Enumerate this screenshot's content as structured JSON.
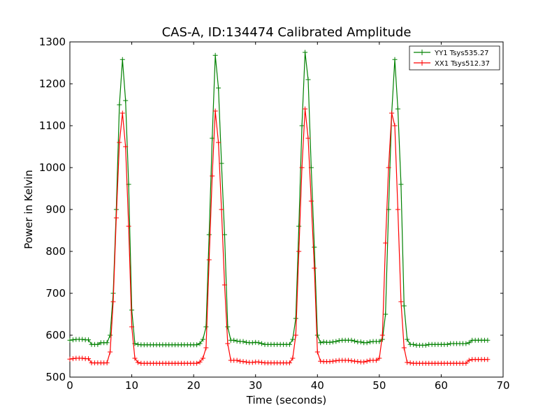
{
  "chart_data": {
    "type": "line",
    "title": "CAS-A, ID:134474 Calibrated Amplitude",
    "xlabel": "Time (seconds)",
    "ylabel": "Power in Kelvin",
    "xlim": [
      0,
      70
    ],
    "ylim": [
      500,
      1300
    ],
    "xticks": [
      0,
      10,
      20,
      30,
      40,
      50,
      60,
      70
    ],
    "yticks": [
      500,
      600,
      700,
      800,
      900,
      1000,
      1100,
      1200,
      1300
    ],
    "grid": false,
    "legend_position": "top-right",
    "marker": "plus",
    "series": [
      {
        "name": "YY1 Tsys535.27",
        "color": "#008000",
        "x": [
          0,
          0.5,
          1,
          1.5,
          2,
          2.5,
          3,
          3.5,
          4,
          4.5,
          5,
          5.5,
          6,
          6.5,
          7,
          7.5,
          8,
          8.5,
          9,
          9.5,
          10,
          10.5,
          11,
          11.5,
          12,
          12.5,
          13,
          13.5,
          14,
          14.5,
          15,
          15.5,
          16,
          16.5,
          17,
          17.5,
          18,
          18.5,
          19,
          19.5,
          20,
          20.5,
          21,
          21.5,
          22,
          22.5,
          23,
          23.5,
          24,
          24.5,
          25,
          25.5,
          26,
          26.5,
          27,
          27.5,
          28,
          28.5,
          29,
          29.5,
          30,
          30.5,
          31,
          31.5,
          32,
          32.5,
          33,
          33.5,
          34,
          34.5,
          35,
          35.5,
          36,
          36.5,
          37,
          37.5,
          38,
          38.5,
          39,
          39.5,
          40,
          40.5,
          41,
          41.5,
          42,
          42.5,
          43,
          43.5,
          44,
          44.5,
          45,
          45.5,
          46,
          46.5,
          47,
          47.5,
          48,
          48.5,
          49,
          49.5,
          50,
          50.5,
          51,
          51.5,
          52,
          52.5,
          53,
          53.5,
          54,
          54.5,
          55,
          55.5,
          56,
          56.5,
          57,
          57.5,
          58,
          58.5,
          59,
          59.5,
          60,
          60.5,
          61,
          61.5,
          62,
          62.5,
          63,
          63.5,
          64,
          64.5,
          65,
          65.5,
          66,
          66.5,
          67,
          67.5
        ],
        "y": [
          588,
          589,
          590,
          590,
          590,
          589,
          589,
          578,
          578,
          578,
          582,
          582,
          582,
          600,
          700,
          900,
          1150,
          1258,
          1160,
          960,
          660,
          580,
          578,
          577,
          577,
          577,
          577,
          577,
          577,
          577,
          577,
          577,
          577,
          577,
          577,
          577,
          577,
          577,
          577,
          577,
          577,
          577,
          580,
          590,
          620,
          840,
          1070,
          1268,
          1190,
          1010,
          840,
          620,
          588,
          588,
          586,
          585,
          585,
          583,
          582,
          582,
          583,
          582,
          580,
          578,
          578,
          578,
          578,
          578,
          578,
          578,
          578,
          578,
          590,
          640,
          860,
          1100,
          1275,
          1210,
          1000,
          810,
          600,
          582,
          584,
          583,
          583,
          584,
          585,
          587,
          588,
          588,
          588,
          588,
          586,
          584,
          584,
          582,
          582,
          584,
          585,
          585,
          585,
          590,
          650,
          900,
          1130,
          1258,
          1140,
          960,
          670,
          590,
          578,
          578,
          576,
          576,
          576,
          576,
          578,
          578,
          578,
          578,
          578,
          578,
          578,
          580,
          580,
          580,
          580,
          580,
          580,
          582,
          588,
          588,
          588,
          588,
          588,
          588
        ],
        "peaks": [
          1258,
          1268,
          1275,
          1258
        ]
      },
      {
        "name": "XX1 Tsys512.37",
        "color": "#ff0000",
        "x": [
          0,
          0.5,
          1,
          1.5,
          2,
          2.5,
          3,
          3.5,
          4,
          4.5,
          5,
          5.5,
          6,
          6.5,
          7,
          7.5,
          8,
          8.5,
          9,
          9.5,
          10,
          10.5,
          11,
          11.5,
          12,
          12.5,
          13,
          13.5,
          14,
          14.5,
          15,
          15.5,
          16,
          16.5,
          17,
          17.5,
          18,
          18.5,
          19,
          19.5,
          20,
          20.5,
          21,
          21.5,
          22,
          22.5,
          23,
          23.5,
          24,
          24.5,
          25,
          25.5,
          26,
          26.5,
          27,
          27.5,
          28,
          28.5,
          29,
          29.5,
          30,
          30.5,
          31,
          31.5,
          32,
          32.5,
          33,
          33.5,
          34,
          34.5,
          35,
          35.5,
          36,
          36.5,
          37,
          37.5,
          38,
          38.5,
          39,
          39.5,
          40,
          40.5,
          41,
          41.5,
          42,
          42.5,
          43,
          43.5,
          44,
          44.5,
          45,
          45.5,
          46,
          46.5,
          47,
          47.5,
          48,
          48.5,
          49,
          49.5,
          50,
          50.5,
          51,
          51.5,
          52,
          52.5,
          53,
          53.5,
          54,
          54.5,
          55,
          55.5,
          56,
          56.5,
          57,
          57.5,
          58,
          58.5,
          59,
          59.5,
          60,
          60.5,
          61,
          61.5,
          62,
          62.5,
          63,
          63.5,
          64,
          64.5,
          65,
          65.5,
          66,
          66.5,
          67,
          67.5
        ],
        "y": [
          543,
          544,
          545,
          545,
          545,
          544,
          544,
          534,
          534,
          534,
          534,
          534,
          534,
          560,
          680,
          880,
          1060,
          1130,
          1050,
          860,
          620,
          545,
          535,
          533,
          533,
          533,
          533,
          533,
          533,
          533,
          533,
          533,
          533,
          533,
          533,
          533,
          533,
          533,
          533,
          533,
          533,
          533,
          536,
          545,
          570,
          780,
          980,
          1135,
          1060,
          900,
          720,
          580,
          540,
          540,
          540,
          538,
          537,
          536,
          535,
          535,
          536,
          536,
          535,
          534,
          534,
          534,
          534,
          534,
          534,
          534,
          534,
          534,
          545,
          600,
          800,
          1000,
          1140,
          1070,
          920,
          760,
          560,
          538,
          537,
          537,
          537,
          538,
          539,
          540,
          540,
          540,
          540,
          539,
          538,
          537,
          536,
          536,
          538,
          540,
          540,
          540,
          545,
          600,
          820,
          1000,
          1130,
          1100,
          900,
          680,
          570,
          535,
          534,
          533,
          533,
          533,
          533,
          533,
          533,
          533,
          533,
          533,
          533,
          533,
          533,
          533,
          533,
          533,
          533,
          533,
          533,
          540,
          542,
          542,
          542,
          542,
          542,
          542
        ]
      }
    ]
  }
}
